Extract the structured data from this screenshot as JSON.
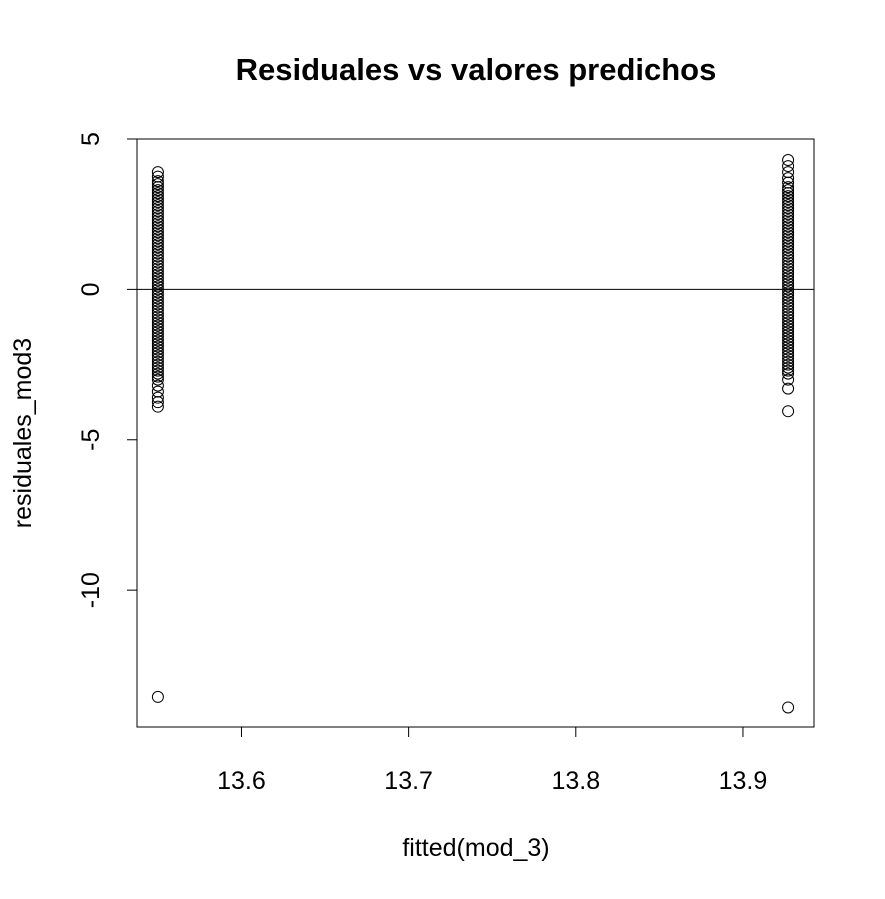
{
  "chart_data": {
    "type": "scatter",
    "title": "Residuales vs valores predichos",
    "xlabel": "fitted(mod_3)",
    "ylabel": "residuales_mod3",
    "xlim": [
      13.5375,
      13.9425
    ],
    "ylim": [
      -14.55,
      5
    ],
    "x_ticks": [
      13.6,
      13.7,
      13.8,
      13.9
    ],
    "x_tick_labels": [
      "13.6",
      "13.7",
      "13.8",
      "13.9"
    ],
    "y_ticks": [
      -10,
      -5,
      0,
      5
    ],
    "y_tick_labels": [
      "-10",
      "-5",
      "0",
      "5"
    ],
    "reference_line": {
      "y": 0
    },
    "grid": false,
    "legend": "none",
    "marker": "open-circle",
    "point_color": "#000000",
    "series": [
      {
        "x": 13.55,
        "y": [
          3.9,
          3.75,
          3.6,
          3.5,
          3.4,
          3.3,
          3.2,
          3.1,
          3.0,
          2.9,
          2.8,
          2.7,
          2.6,
          2.5,
          2.4,
          2.3,
          2.2,
          2.1,
          2.0,
          1.9,
          1.8,
          1.7,
          1.6,
          1.5,
          1.4,
          1.3,
          1.2,
          1.1,
          1.0,
          0.9,
          0.8,
          0.7,
          0.6,
          0.5,
          0.4,
          0.3,
          0.2,
          0.1,
          0.0,
          -0.1,
          -0.2,
          -0.3,
          -0.4,
          -0.5,
          -0.6,
          -0.7,
          -0.8,
          -0.9,
          -1.0,
          -1.1,
          -1.2,
          -1.3,
          -1.4,
          -1.5,
          -1.6,
          -1.7,
          -1.8,
          -1.9,
          -2.0,
          -2.1,
          -2.2,
          -2.3,
          -2.4,
          -2.5,
          -2.6,
          -2.7,
          -2.8,
          -2.9,
          -3.0,
          -3.2,
          -3.4,
          -3.6,
          -3.75,
          -3.9,
          -13.55
        ]
      },
      {
        "x": 13.927,
        "y": [
          4.3,
          4.1,
          3.9,
          3.7,
          3.55,
          3.4,
          3.3,
          3.2,
          3.1,
          3.0,
          2.9,
          2.8,
          2.7,
          2.6,
          2.5,
          2.4,
          2.3,
          2.2,
          2.1,
          2.0,
          1.9,
          1.8,
          1.7,
          1.6,
          1.5,
          1.4,
          1.3,
          1.2,
          1.1,
          1.0,
          0.9,
          0.8,
          0.7,
          0.6,
          0.5,
          0.4,
          0.3,
          0.2,
          0.1,
          0.0,
          -0.1,
          -0.2,
          -0.3,
          -0.4,
          -0.5,
          -0.6,
          -0.7,
          -0.8,
          -0.9,
          -1.0,
          -1.1,
          -1.2,
          -1.3,
          -1.4,
          -1.5,
          -1.6,
          -1.7,
          -1.8,
          -1.9,
          -2.0,
          -2.1,
          -2.2,
          -2.3,
          -2.4,
          -2.5,
          -2.6,
          -2.7,
          -2.8,
          -3.0,
          -3.3,
          -4.05,
          -13.9
        ]
      }
    ]
  }
}
